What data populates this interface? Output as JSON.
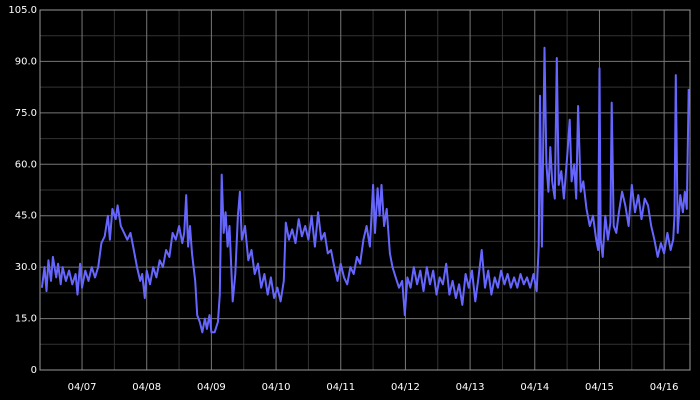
{
  "chart_data": {
    "type": "line",
    "x": [
      6.38,
      6.42,
      6.45,
      6.48,
      6.52,
      6.55,
      6.6,
      6.63,
      6.67,
      6.7,
      6.75,
      6.8,
      6.85,
      6.9,
      6.93,
      6.97,
      7.0,
      7.05,
      7.1,
      7.15,
      7.2,
      7.25,
      7.3,
      7.35,
      7.4,
      7.43,
      7.47,
      7.52,
      7.55,
      7.6,
      7.65,
      7.7,
      7.75,
      7.8,
      7.85,
      7.9,
      7.93,
      7.97,
      8.0,
      8.05,
      8.1,
      8.15,
      8.2,
      8.25,
      8.3,
      8.35,
      8.4,
      8.45,
      8.5,
      8.55,
      8.58,
      8.61,
      8.64,
      8.67,
      8.7,
      8.75,
      8.78,
      8.82,
      8.86,
      8.9,
      8.93,
      8.97,
      9.0,
      9.05,
      9.1,
      9.13,
      9.16,
      9.19,
      9.22,
      9.25,
      9.28,
      9.33,
      9.37,
      9.41,
      9.44,
      9.47,
      9.52,
      9.57,
      9.62,
      9.67,
      9.72,
      9.77,
      9.82,
      9.87,
      9.92,
      9.97,
      10.02,
      10.07,
      10.12,
      10.15,
      10.2,
      10.25,
      10.3,
      10.35,
      10.4,
      10.45,
      10.5,
      10.55,
      10.6,
      10.65,
      10.7,
      10.75,
      10.8,
      10.85,
      10.9,
      10.95,
      11.0,
      11.05,
      11.1,
      11.15,
      11.2,
      11.25,
      11.3,
      11.35,
      11.4,
      11.45,
      11.5,
      11.53,
      11.57,
      11.6,
      11.63,
      11.67,
      11.71,
      11.76,
      11.8,
      11.85,
      11.9,
      11.95,
      11.99,
      12.03,
      12.08,
      12.13,
      12.18,
      12.23,
      12.28,
      12.33,
      12.38,
      12.43,
      12.48,
      12.53,
      12.58,
      12.63,
      12.68,
      12.73,
      12.78,
      12.83,
      12.88,
      12.93,
      12.98,
      13.03,
      13.08,
      13.13,
      13.18,
      13.23,
      13.28,
      13.33,
      13.38,
      13.43,
      13.48,
      13.53,
      13.58,
      13.63,
      13.68,
      13.73,
      13.78,
      13.83,
      13.88,
      13.93,
      13.98,
      14.03,
      14.06,
      14.08,
      14.11,
      14.15,
      14.18,
      14.21,
      14.24,
      14.27,
      14.31,
      14.34,
      14.37,
      14.41,
      14.45,
      14.5,
      14.54,
      14.57,
      14.61,
      14.64,
      14.67,
      14.71,
      14.75,
      14.8,
      14.85,
      14.9,
      14.95,
      14.98,
      15.0,
      15.02,
      15.05,
      15.09,
      15.13,
      15.17,
      15.19,
      15.22,
      15.26,
      15.3,
      15.35,
      15.4,
      15.45,
      15.5,
      15.55,
      15.6,
      15.65,
      15.7,
      15.75,
      15.8,
      15.85,
      15.9,
      15.95,
      16.0,
      16.05,
      16.1,
      16.14,
      16.16,
      16.18,
      16.21,
      16.25,
      16.29,
      16.32,
      16.35,
      16.38
    ],
    "series": [
      {
        "color": "#6666ff",
        "values": [
          24,
          30,
          23,
          32,
          26,
          33,
          27,
          31,
          25,
          30,
          26,
          29,
          25,
          28,
          22,
          31,
          24,
          29,
          26,
          30,
          27,
          30,
          37,
          39,
          45,
          38,
          47,
          44,
          48,
          42,
          40,
          38,
          40,
          35,
          30,
          26,
          28,
          21,
          29,
          25,
          30,
          27,
          32,
          30,
          35,
          33,
          40,
          38,
          42,
          37,
          40,
          51,
          36,
          42,
          34,
          26,
          16,
          14,
          11,
          15,
          12,
          16,
          11,
          11,
          14,
          22,
          57,
          40,
          46,
          36,
          42,
          20,
          28,
          45,
          52,
          38,
          42,
          32,
          35,
          28,
          31,
          24,
          28,
          22,
          27,
          21,
          24,
          20,
          26,
          43,
          38,
          41,
          37,
          44,
          39,
          42,
          38,
          45,
          36,
          46,
          38,
          40,
          34,
          35,
          30,
          26,
          31,
          27,
          25,
          30,
          28,
          33,
          31,
          38,
          42,
          36,
          54,
          40,
          53,
          45,
          54,
          42,
          47,
          34,
          30,
          27,
          24,
          26,
          16,
          27,
          24,
          30,
          25,
          29,
          23,
          30,
          25,
          29,
          22,
          27,
          25,
          31,
          22,
          26,
          21,
          25,
          19,
          28,
          24,
          29,
          20,
          27,
          35,
          24,
          29,
          22,
          27,
          24,
          29,
          25,
          28,
          24,
          27,
          24,
          28,
          25,
          27,
          24,
          28,
          23,
          36,
          80,
          36,
          94,
          60,
          52,
          65,
          55,
          50,
          91,
          54,
          58,
          50,
          62,
          73,
          55,
          60,
          50,
          77,
          52,
          55,
          47,
          42,
          45,
          38,
          35,
          88,
          38,
          33,
          45,
          38,
          43,
          78,
          42,
          40,
          46,
          52,
          48,
          42,
          54,
          46,
          51,
          44,
          50,
          48,
          42,
          38,
          33,
          37,
          34,
          40,
          35,
          38,
          45,
          86,
          40,
          51,
          46,
          52,
          47,
          82
        ]
      }
    ],
    "xlim": [
      6.35,
      16.4
    ],
    "xticks": [
      {
        "value": 7,
        "label": "04/07"
      },
      {
        "value": 8,
        "label": "04/08"
      },
      {
        "value": 9,
        "label": "04/09"
      },
      {
        "value": 10,
        "label": "04/10"
      },
      {
        "value": 11,
        "label": "04/11"
      },
      {
        "value": 12,
        "label": "04/12"
      },
      {
        "value": 13,
        "label": "04/13"
      },
      {
        "value": 14,
        "label": "04/14"
      },
      {
        "value": 15,
        "label": "04/15"
      },
      {
        "value": 16,
        "label": "04/16"
      }
    ],
    "ylim": [
      0,
      105
    ],
    "yticks": [
      0,
      {
        "value": 15,
        "label": "15.0"
      },
      {
        "value": 30,
        "label": "30.0"
      },
      {
        "value": 45,
        "label": "45.0"
      },
      {
        "value": 60,
        "label": "60.0"
      },
      {
        "value": 75,
        "label": "75.0"
      },
      {
        "value": 90,
        "label": "90.0"
      },
      {
        "value": 105,
        "label": "105.0"
      }
    ],
    "grid": true
  }
}
